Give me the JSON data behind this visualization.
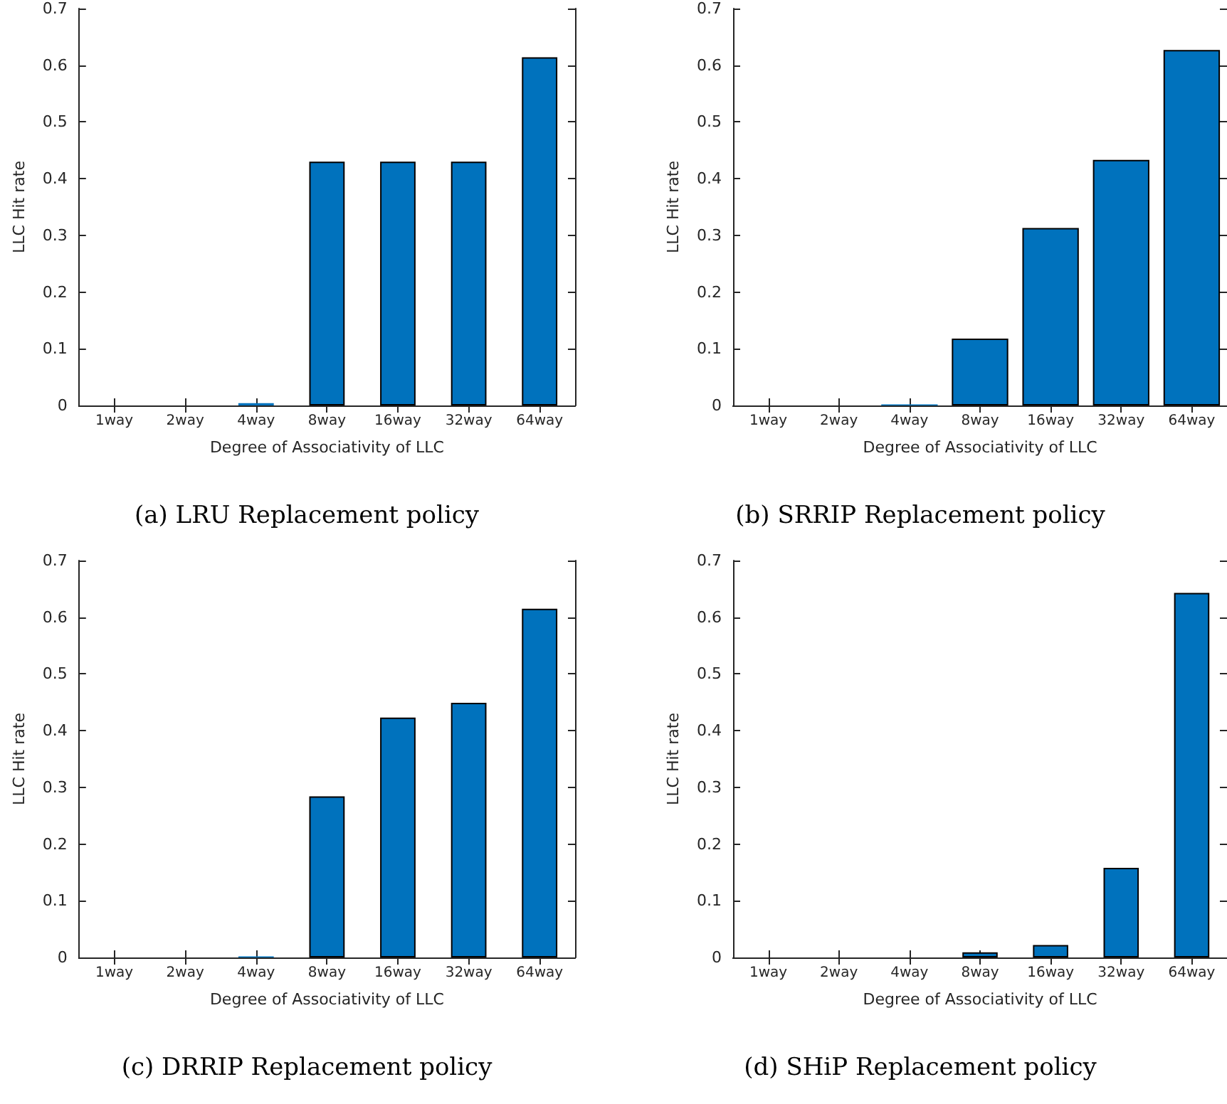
{
  "chart_data": [
    {
      "type": "bar",
      "title": "(a) LRU Replacement policy",
      "xlabel": "Degree of Associativity of LLC",
      "ylabel": "LLC Hit rate",
      "categories": [
        "1way",
        "2way",
        "4way",
        "8way",
        "16way",
        "32way",
        "64way"
      ],
      "values": [
        0,
        0,
        0.004,
        0.43,
        0.43,
        0.43,
        0.614
      ],
      "color": "#0072bd",
      "ylim": [
        0,
        0.7
      ],
      "yticks": [
        0,
        0.1,
        0.2,
        0.3,
        0.4,
        0.5,
        0.6,
        0.7
      ],
      "grid": false
    },
    {
      "type": "bar",
      "title": "(b) SRRIP Replacement policy",
      "xlabel": "Degree of Associativity of LLC",
      "ylabel": "LLC Hit rate",
      "categories": [
        "1way",
        "2way",
        "4way",
        "8way",
        "16way",
        "32way",
        "64way"
      ],
      "values": [
        0,
        0,
        0.002,
        0.118,
        0.313,
        0.433,
        0.627
      ],
      "color": "#0072bd",
      "ylim": [
        0,
        0.7
      ],
      "yticks": [
        0,
        0.1,
        0.2,
        0.3,
        0.4,
        0.5,
        0.6,
        0.7
      ],
      "grid": false
    },
    {
      "type": "bar",
      "title": "(c) DRRIP Replacement policy",
      "xlabel": "Degree of Associativity of LLC",
      "ylabel": "LLC Hit rate",
      "categories": [
        "1way",
        "2way",
        "4way",
        "8way",
        "16way",
        "32way",
        "64way"
      ],
      "values": [
        0,
        0,
        0.002,
        0.284,
        0.423,
        0.449,
        0.615
      ],
      "color": "#0072bd",
      "ylim": [
        0,
        0.7
      ],
      "yticks": [
        0,
        0.1,
        0.2,
        0.3,
        0.4,
        0.5,
        0.6,
        0.7
      ],
      "grid": false
    },
    {
      "type": "bar",
      "title": "(d) SHiP Replacement policy",
      "xlabel": "Degree of Associativity of LLC",
      "ylabel": "LLC Hit rate",
      "categories": [
        "1way",
        "2way",
        "4way",
        "8way",
        "16way",
        "32way",
        "64way"
      ],
      "values": [
        0,
        0,
        0,
        0.009,
        0.022,
        0.158,
        0.643
      ],
      "color": "#0072bd",
      "ylim": [
        0,
        0.7
      ],
      "yticks": [
        0,
        0.1,
        0.2,
        0.3,
        0.4,
        0.5,
        0.6,
        0.7
      ],
      "grid": false
    }
  ]
}
